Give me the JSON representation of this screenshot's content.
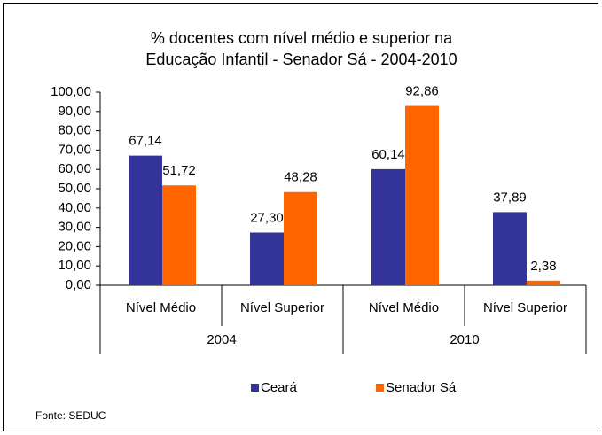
{
  "chart_data": {
    "type": "bar",
    "title_lines": [
      "% docentes com nível médio e superior na",
      "Educação Infantil - Senador Sá - 2004-2010"
    ],
    "categories": [
      "Nível Médio",
      "Nível Superior",
      "Nível Médio",
      "Nível Superior"
    ],
    "category_groups": [
      "2004",
      "2010"
    ],
    "series": [
      {
        "name": "Ceará",
        "color": "#333399",
        "values": [
          67.14,
          27.3,
          60.14,
          37.89
        ],
        "value_labels": [
          "67,14",
          "27,30",
          "60,14",
          "37,89"
        ]
      },
      {
        "name": "Senador Sá",
        "color": "#ff6600",
        "values": [
          51.72,
          48.28,
          92.86,
          2.38
        ],
        "value_labels": [
          "51,72",
          "48,28",
          "92,86",
          "2,38"
        ]
      }
    ],
    "ylim": [
      0,
      100
    ],
    "yticks": [
      {
        "value": 0,
        "label": "0,00"
      },
      {
        "value": 10,
        "label": "10,00"
      },
      {
        "value": 20,
        "label": "20,00"
      },
      {
        "value": 30,
        "label": "30,00"
      },
      {
        "value": 40,
        "label": "40,00"
      },
      {
        "value": 50,
        "label": "50,00"
      },
      {
        "value": 60,
        "label": "60,00"
      },
      {
        "value": 70,
        "label": "70,00"
      },
      {
        "value": 80,
        "label": "80,00"
      },
      {
        "value": 90,
        "label": "90,00"
      },
      {
        "value": 100,
        "label": "100,00"
      }
    ],
    "legend": "bottom",
    "source": "Fonte: SEDUC"
  }
}
